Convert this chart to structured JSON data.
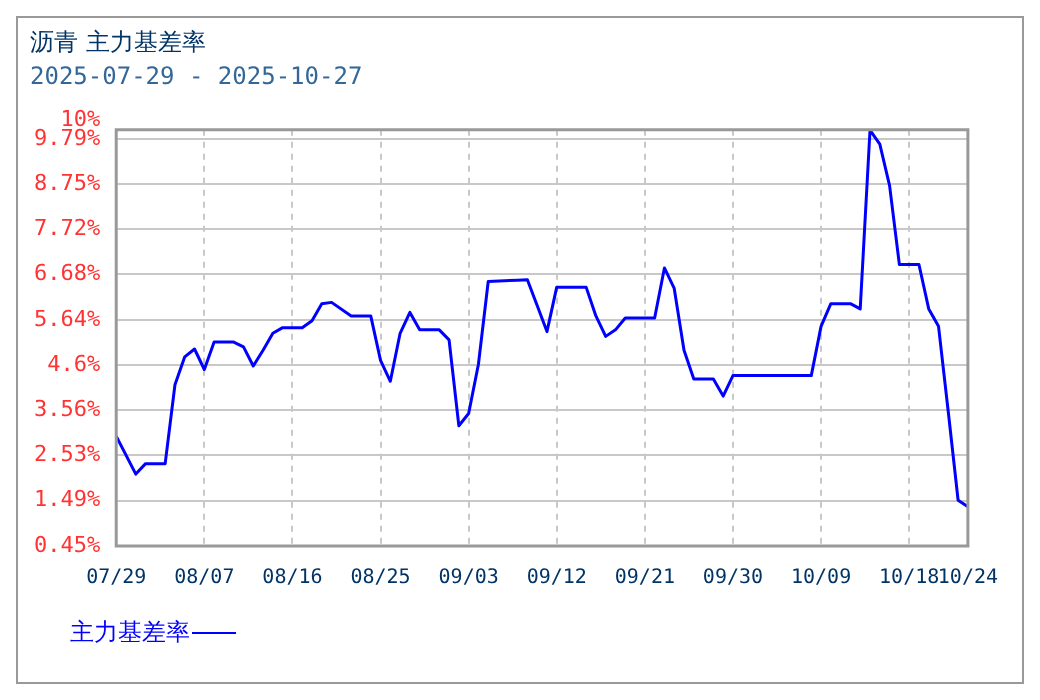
{
  "chart_data": {
    "type": "line",
    "title": "沥青  主力基差率",
    "subtitle": "2025-07-29 - 2025-10-27",
    "x": [
      "2025-07-29",
      "2025-07-31",
      "2025-08-01",
      "2025-08-03",
      "2025-08-04",
      "2025-08-05",
      "2025-08-06",
      "2025-08-07",
      "2025-08-08",
      "2025-08-10",
      "2025-08-11",
      "2025-08-12",
      "2025-08-13",
      "2025-08-14",
      "2025-08-15",
      "2025-08-17",
      "2025-08-18",
      "2025-08-19",
      "2025-08-20",
      "2025-08-22",
      "2025-08-24",
      "2025-08-25",
      "2025-08-26",
      "2025-08-27",
      "2025-08-28",
      "2025-08-29",
      "2025-08-31",
      "2025-09-01",
      "2025-09-02",
      "2025-09-03",
      "2025-09-04",
      "2025-09-05",
      "2025-09-08",
      "2025-09-09",
      "2025-09-10",
      "2025-09-11",
      "2025-09-12",
      "2025-09-15",
      "2025-09-16",
      "2025-09-17",
      "2025-09-18",
      "2025-09-19",
      "2025-09-22",
      "2025-09-23",
      "2025-09-24",
      "2025-09-25",
      "2025-09-26",
      "2025-09-28",
      "2025-09-29",
      "2025-09-30",
      "2025-10-08",
      "2025-10-09",
      "2025-10-10",
      "2025-10-12",
      "2025-10-13",
      "2025-10-14",
      "2025-10-15",
      "2025-10-16",
      "2025-10-17",
      "2025-10-19",
      "2025-10-20",
      "2025-10-21",
      "2025-10-22",
      "2025-10-23",
      "2025-10-24"
    ],
    "series": [
      {
        "name": "主力基差率",
        "color": "#0000ff",
        "values": [
          2.97,
          2.1,
          2.34,
          2.34,
          4.15,
          4.79,
          4.97,
          4.5,
          5.13,
          5.13,
          5.02,
          4.58,
          4.94,
          5.33,
          5.46,
          5.46,
          5.62,
          6.01,
          6.04,
          5.73,
          5.73,
          4.71,
          4.23,
          5.33,
          5.81,
          5.41,
          5.41,
          5.18,
          3.21,
          3.49,
          4.62,
          6.52,
          6.55,
          6.56,
          5.97,
          5.37,
          6.39,
          6.39,
          5.73,
          5.26,
          5.41,
          5.68,
          5.68,
          6.83,
          6.36,
          4.94,
          4.28,
          4.28,
          3.89,
          4.36,
          4.36,
          5.49,
          6.01,
          6.01,
          5.89,
          9.99,
          9.67,
          8.72,
          6.91,
          6.91,
          5.89,
          5.49,
          3.52,
          1.5,
          1.35
        ]
      }
    ],
    "xlim": [
      "2025-07-29",
      "2025-10-24"
    ],
    "xticks": [
      {
        "value": "2025-07-29",
        "label": "07/29"
      },
      {
        "value": "2025-08-07",
        "label": "08/07"
      },
      {
        "value": "2025-08-16",
        "label": "08/16"
      },
      {
        "value": "2025-08-25",
        "label": "08/25"
      },
      {
        "value": "2025-09-03",
        "label": "09/03"
      },
      {
        "value": "2025-09-12",
        "label": "09/12"
      },
      {
        "value": "2025-09-21",
        "label": "09/21"
      },
      {
        "value": "2025-09-30",
        "label": "09/30"
      },
      {
        "value": "2025-10-09",
        "label": "10/09"
      },
      {
        "value": "2025-10-18",
        "label": "10/18"
      },
      {
        "value": "2025-10-24",
        "label": "10/24"
      }
    ],
    "ylim": [
      0.45,
      10
    ],
    "yticks": [
      {
        "value": 0.45,
        "label": "0.45%"
      },
      {
        "value": 1.49,
        "label": "1.49%"
      },
      {
        "value": 2.53,
        "label": "2.53%"
      },
      {
        "value": 3.56,
        "label": "3.56%"
      },
      {
        "value": 4.6,
        "label": "4.6%"
      },
      {
        "value": 5.64,
        "label": "5.64%"
      },
      {
        "value": 6.68,
        "label": "6.68%"
      },
      {
        "value": 7.72,
        "label": "7.72%"
      },
      {
        "value": 8.75,
        "label": "8.75%"
      },
      {
        "value": 9.79,
        "label": "9.79%"
      },
      {
        "value": 10,
        "label": "10%"
      }
    ],
    "grid": true,
    "legend": "bottom left",
    "marker": "none",
    "line_style": "solid"
  }
}
